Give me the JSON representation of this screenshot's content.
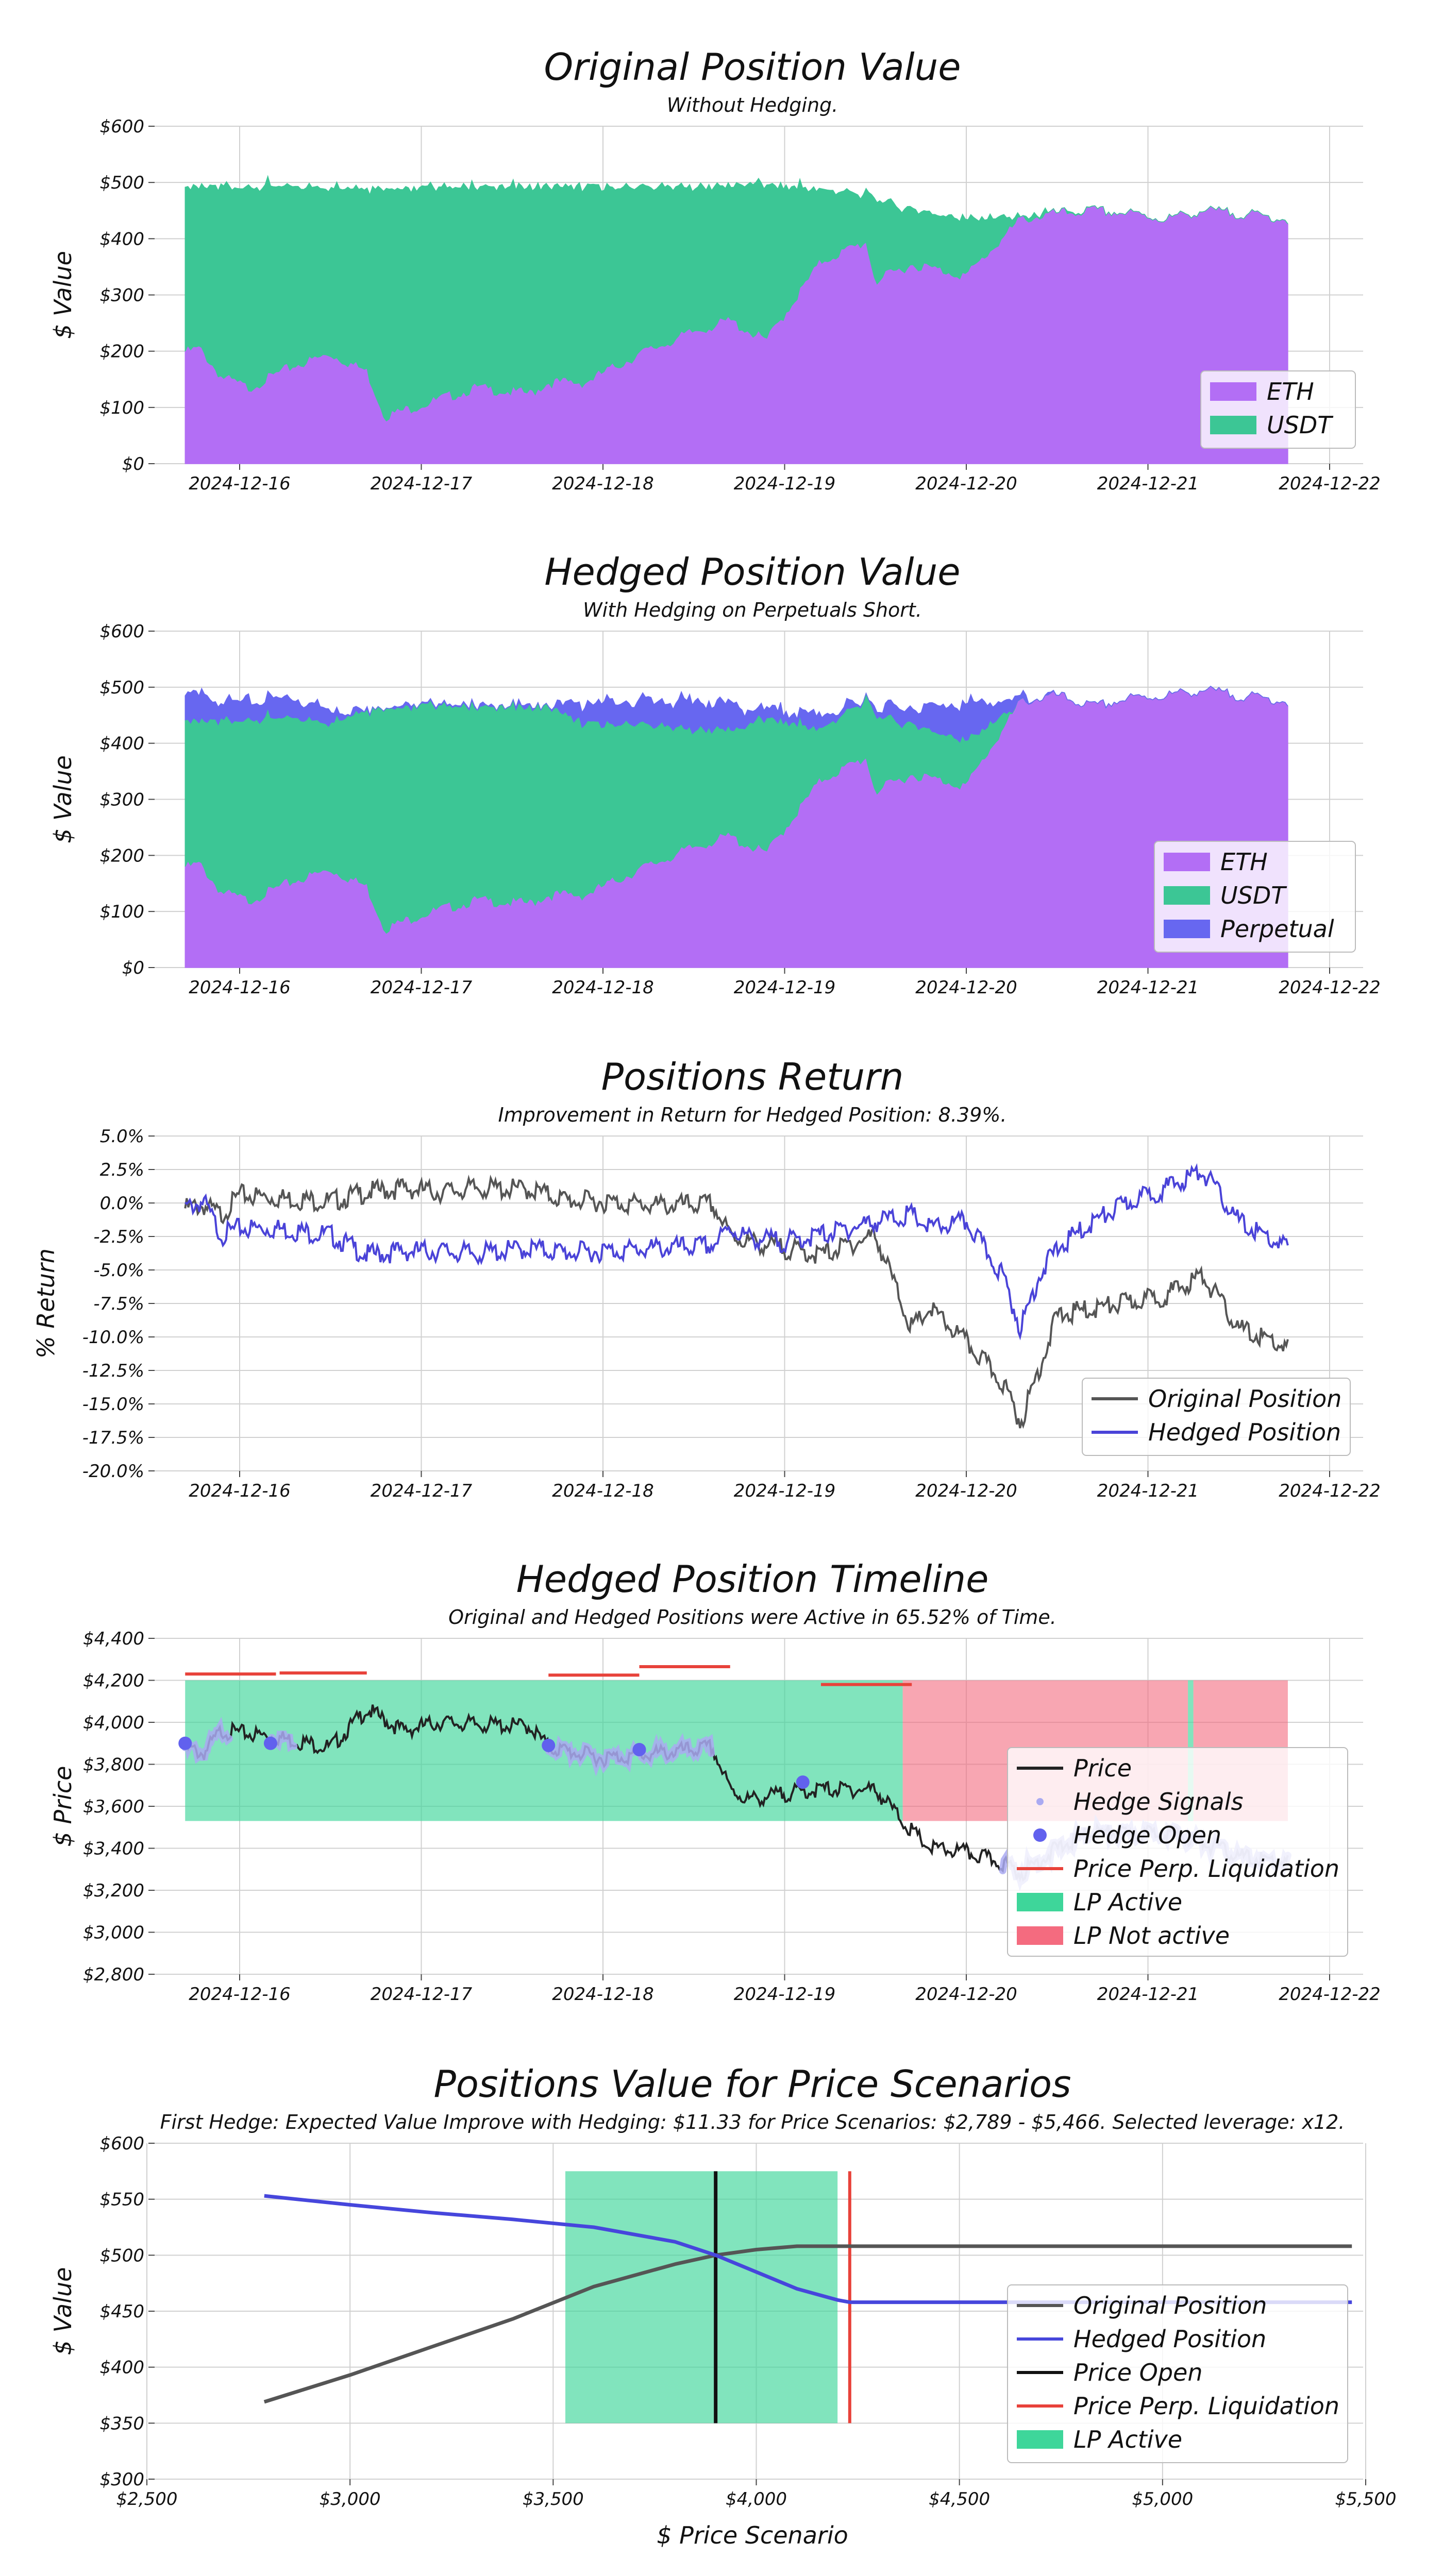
{
  "chart_data": [
    {
      "type": "area",
      "stacked": true,
      "title": "Original Position Value",
      "subtitle": "Without Hedging.",
      "ylabel": "$ Value",
      "xlabel": "",
      "x_range": [
        "2024-12-15 17:00",
        "2024-12-22 00:00"
      ],
      "x_ticks": [
        "2024-12-16",
        "2024-12-17",
        "2024-12-18",
        "2024-12-19",
        "2024-12-20",
        "2024-12-21",
        "2024-12-22"
      ],
      "ylim": [
        0,
        600
      ],
      "y_ticks": [
        "$0",
        "$100",
        "$200",
        "$300",
        "$400",
        "$500",
        "$600"
      ],
      "legend_position": "lower-right",
      "time_days": [
        0,
        0.08,
        0.2,
        0.35,
        0.6,
        0.8,
        1.0,
        1.1,
        1.3,
        1.6,
        1.9,
        2.0,
        2.2,
        2.5,
        2.8,
        3.0,
        3.05,
        3.2,
        3.5,
        3.75,
        3.8,
        4.0,
        4.3,
        4.6,
        4.8,
        5.0,
        5.2,
        5.4,
        5.6,
        5.8,
        6.07
      ],
      "series": [
        {
          "name": "ETH",
          "color": "#b36ef5",
          "values": [
            205,
            210,
            160,
            140,
            180,
            200,
            170,
            90,
            110,
            140,
            130,
            150,
            150,
            200,
            240,
            260,
            250,
            225,
            365,
            400,
            330,
            360,
            340,
            440,
            450,
            455,
            450,
            440,
            455,
            450,
            440
          ]
        },
        {
          "name": "USDT",
          "color": "#3cc695",
          "values": [
            295,
            292,
            340,
            362,
            322,
            304,
            334,
            412,
            392,
            362,
            372,
            352,
            352,
            302,
            262,
            243,
            256,
            280,
            132,
            90,
            150,
            103,
            105,
            8,
            3,
            0,
            0,
            0,
            0,
            0,
            0
          ]
        }
      ]
    },
    {
      "type": "area",
      "stacked": true,
      "title": "Hedged Position Value",
      "subtitle": "With Hedging on Perpetuals Short.",
      "ylabel": "$ Value",
      "xlabel": "",
      "x_range": [
        "2024-12-15 17:00",
        "2024-12-22 00:00"
      ],
      "x_ticks": [
        "2024-12-16",
        "2024-12-17",
        "2024-12-18",
        "2024-12-19",
        "2024-12-20",
        "2024-12-21",
        "2024-12-22"
      ],
      "ylim": [
        0,
        600
      ],
      "y_ticks": [
        "$0",
        "$100",
        "$200",
        "$300",
        "$400",
        "$500",
        "$600"
      ],
      "legend_position": "lower-right",
      "time_days": [
        0,
        0.08,
        0.2,
        0.35,
        0.6,
        0.8,
        1.0,
        1.1,
        1.3,
        1.6,
        1.9,
        2.0,
        2.2,
        2.5,
        2.8,
        3.0,
        3.05,
        3.2,
        3.5,
        3.75,
        3.8,
        4.0,
        4.3,
        4.6,
        4.8,
        5.0,
        5.2,
        5.4,
        5.6,
        5.8,
        6.07
      ],
      "series": [
        {
          "name": "ETH",
          "color": "#b36ef5",
          "values": [
            185,
            190,
            140,
            125,
            160,
            180,
            150,
            75,
            100,
            125,
            120,
            135,
            135,
            180,
            220,
            240,
            230,
            210,
            340,
            380,
            320,
            350,
            330,
            480,
            490,
            470,
            485,
            490,
            500,
            490,
            480
          ]
        },
        {
          "name": "USDT",
          "color": "#3cc695",
          "values": [
            265,
            260,
            308,
            328,
            295,
            270,
            325,
            400,
            380,
            350,
            355,
            340,
            310,
            265,
            215,
            195,
            205,
            245,
            95,
            110,
            140,
            95,
            85,
            0,
            0,
            0,
            0,
            0,
            0,
            0,
            0
          ]
        },
        {
          "name": "Perpetual",
          "color": "#6767f0",
          "values": [
            50,
            50,
            40,
            37,
            40,
            30,
            2,
            3,
            2,
            2,
            4,
            5,
            42,
            45,
            55,
            50,
            40,
            20,
            30,
            0,
            20,
            35,
            70,
            10,
            0,
            0,
            0,
            0,
            0,
            0,
            0
          ]
        }
      ]
    },
    {
      "type": "line",
      "title": "Positions Return",
      "subtitle": "Improvement in Return for Hedged Position: 8.39%.",
      "ylabel": "% Return",
      "xlabel": "",
      "x_range": [
        "2024-12-15 17:00",
        "2024-12-22 00:00"
      ],
      "x_ticks": [
        "2024-12-16",
        "2024-12-17",
        "2024-12-18",
        "2024-12-19",
        "2024-12-20",
        "2024-12-21",
        "2024-12-22"
      ],
      "ylim": [
        -20,
        5
      ],
      "y_ticks": [
        "-20.0%",
        "-17.5%",
        "-15.0%",
        "-12.5%",
        "-10.0%",
        "-7.5%",
        "-5.0%",
        "-2.5%",
        "0.0%",
        "2.5%",
        "5.0%"
      ],
      "legend_position": "lower-right",
      "time_days": [
        0,
        0.1,
        0.2,
        0.3,
        0.5,
        0.8,
        1.0,
        1.2,
        1.4,
        1.6,
        1.9,
        2.1,
        2.3,
        2.6,
        2.9,
        3.0,
        3.1,
        3.3,
        3.5,
        3.8,
        4.0,
        4.1,
        4.3,
        4.5,
        4.6,
        4.7,
        4.8,
        5.0,
        5.2,
        5.4,
        5.6,
        5.8,
        6.0,
        6.07
      ],
      "series": [
        {
          "name": "Original Position",
          "color": "#555555",
          "values": [
            0,
            0.2,
            -0.5,
            1.0,
            0.8,
            0.5,
            1.2,
            1.5,
            1.2,
            1.5,
            1.4,
            0.6,
            0.5,
            0.2,
            0.3,
            -2.0,
            -2.5,
            -3.0,
            -3.5,
            -2.0,
            -9.0,
            -7.5,
            -10.0,
            -13.0,
            -16.0,
            -12.0,
            -8.0,
            -7.5,
            -7.0,
            -6.5,
            -5.0,
            -9.0,
            -10.0,
            -10.5
          ]
        },
        {
          "name": "Hedged Position",
          "color": "#4a43d8",
          "values": [
            0,
            0.5,
            -2.0,
            -1.5,
            -1.5,
            -2.0,
            -3.5,
            -3.2,
            -3.2,
            -3.4,
            -3.0,
            -3.3,
            -3.2,
            -3.0,
            -2.8,
            -1.5,
            -2.2,
            -2.5,
            -2.0,
            -1.0,
            -0.5,
            -1.5,
            -1.0,
            -5.0,
            -9.0,
            -5.0,
            -3.0,
            -1.0,
            0.5,
            1.5,
            2.8,
            -1.0,
            -2.5,
            -3.0
          ]
        }
      ]
    },
    {
      "type": "line",
      "title": "Hedged Position Timeline",
      "subtitle": "Original and Hedged Positions were Active in 65.52% of Time.",
      "ylabel": "$ Price",
      "xlabel": "",
      "x_range": [
        "2024-12-15 17:00",
        "2024-12-22 00:00"
      ],
      "x_ticks": [
        "2024-12-16",
        "2024-12-17",
        "2024-12-18",
        "2024-12-19",
        "2024-12-20",
        "2024-12-21",
        "2024-12-22"
      ],
      "ylim": [
        2800,
        4400
      ],
      "y_ticks": [
        "$2,800",
        "$3,000",
        "$3,200",
        "$3,400",
        "$3,600",
        "$3,800",
        "$4,000",
        "$4,200",
        "$4,400"
      ],
      "legend_position": "lower-right",
      "time_days": [
        0,
        0.1,
        0.2,
        0.3,
        0.5,
        0.8,
        1.0,
        1.2,
        1.4,
        1.6,
        1.9,
        2.0,
        2.3,
        2.6,
        2.9,
        3.0,
        3.1,
        3.3,
        3.5,
        3.8,
        4.0,
        4.1,
        4.3,
        4.5,
        4.6,
        4.8,
        5.0,
        5.2,
        5.4,
        5.6,
        5.8,
        6.07
      ],
      "series": [
        {
          "name": "Price",
          "color": "#222222",
          "values": [
            3900,
            3870,
            3980,
            3970,
            3950,
            3900,
            4080,
            3980,
            4020,
            4010,
            4000,
            3900,
            3850,
            3870,
            3900,
            3700,
            3650,
            3680,
            3700,
            3700,
            3500,
            3420,
            3400,
            3350,
            3300,
            3420,
            3500,
            3480,
            3500,
            3450,
            3380,
            3350
          ]
        }
      ],
      "hedge_signals": {
        "name": "Hedge Signals",
        "color": "#aaaaf2",
        "ranges_days": [
          [
            0.0,
            0.25
          ],
          [
            0.47,
            0.6
          ],
          [
            2.0,
            2.9
          ],
          [
            4.5,
            6.07
          ]
        ]
      },
      "hedge_open": {
        "name": "Hedge Open",
        "color": "#6161ee",
        "time_days": [
          0.0,
          0.47,
          2.0,
          2.5,
          3.4
        ],
        "prices": [
          3900,
          3900,
          3890,
          3870,
          3715
        ]
      },
      "liquidation_segments": {
        "name": "Price Perp. Liquidation",
        "color": "#e8423a",
        "segments": [
          [
            0.0,
            0.5,
            4230
          ],
          [
            0.52,
            1.0,
            4235
          ],
          [
            2.0,
            2.5,
            4225
          ],
          [
            2.5,
            3.0,
            4265
          ],
          [
            3.5,
            4.0,
            4180
          ]
        ]
      },
      "lp_active": {
        "name": "LP Active",
        "color": "#3ed69a",
        "ranges_days": [
          [
            0.0,
            3.95
          ],
          [
            5.52,
            5.55
          ]
        ],
        "price_range": [
          3530,
          4200
        ]
      },
      "lp_not_active": {
        "name": "LP Not active",
        "color": "#f46b7f",
        "ranges_days": [
          [
            3.95,
            5.52
          ],
          [
            5.55,
            6.07
          ]
        ],
        "price_range": [
          3530,
          4200
        ]
      }
    },
    {
      "type": "line",
      "title": "Positions Value for Price Scenarios",
      "subtitle": "First Hedge: Expected Value Improve with Hedging: $11.33 for Price Scenarios: $2,789 - $5,466. Selected leverage: x12.",
      "ylabel": "$ Value",
      "xlabel": "$ Price Scenario",
      "xlim": [
        2500,
        5500
      ],
      "x_ticks": [
        "$2,500",
        "$3,000",
        "$3,500",
        "$4,000",
        "$4,500",
        "$5,000",
        "$5,500"
      ],
      "ylim": [
        300,
        600
      ],
      "y_ticks": [
        "$300",
        "$350",
        "$400",
        "$450",
        "$500",
        "$550",
        "$600"
      ],
      "legend_position": "lower-right",
      "x": [
        2789,
        3000,
        3200,
        3400,
        3600,
        3800,
        3900,
        4000,
        4100,
        4200,
        4230,
        4300,
        4500,
        5000,
        5466
      ],
      "series": [
        {
          "name": "Original Position",
          "color": "#555555",
          "values": [
            369,
            393,
            418,
            443,
            472,
            492,
            500,
            505,
            508,
            508,
            508,
            508,
            508,
            508,
            508
          ]
        },
        {
          "name": "Hedged Position",
          "color": "#4646dc",
          "values": [
            553,
            545,
            538,
            532,
            525,
            512,
            500,
            485,
            470,
            460,
            458,
            458,
            458,
            458,
            458
          ]
        }
      ],
      "price_open": {
        "name": "Price Open",
        "color": "#111111",
        "x": 3900
      },
      "liquidation": {
        "name": "Price Perp. Liquidation",
        "color": "#e8423a",
        "x": 4230
      },
      "lp_active": {
        "name": "LP Active",
        "color": "#3ed69a",
        "x_range": [
          3530,
          4200
        ],
        "y_range": [
          350,
          575
        ]
      }
    }
  ]
}
